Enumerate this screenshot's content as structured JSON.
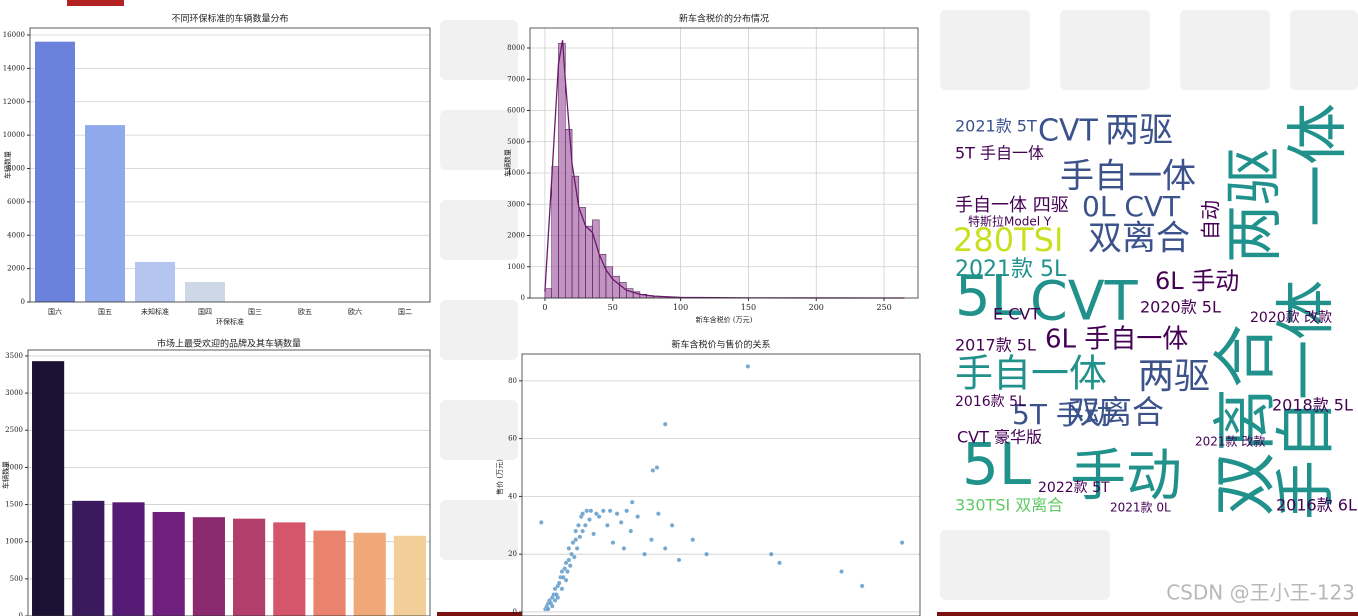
{
  "chart_data": [
    {
      "type": "bar",
      "title": "不同环保标准的车辆数量分布",
      "x_label": "环保标准",
      "y_label": "车辆数量",
      "categories": [
        "国六",
        "国五",
        "未知标准",
        "国四",
        "国三",
        "欧五",
        "欧六",
        "国二"
      ],
      "values": [
        15600,
        10600,
        2400,
        1200,
        25,
        10,
        8,
        3
      ],
      "colors": [
        "#6b82dc",
        "#90a9ec",
        "#b4c6f0",
        "#cdd7e6",
        "#e6d6cc",
        "#efc5b0",
        "#eeae92",
        "#e49375"
      ],
      "ylim": [
        0,
        16420
      ],
      "yticks": [
        0,
        2000,
        4000,
        6000,
        8000,
        10000,
        12000,
        14000,
        16000
      ],
      "grid": true
    },
    {
      "type": "histogram",
      "title": "新车含税价的分布情况",
      "x_label": "新车含税价 (万元)",
      "y_label": "车辆数量",
      "bins": [
        0,
        5,
        10,
        15,
        20,
        25,
        30,
        35,
        40,
        45,
        50,
        55,
        60,
        65,
        70,
        75,
        80,
        85,
        90,
        95,
        100,
        105,
        110,
        115,
        120,
        125,
        130,
        135,
        140,
        145,
        150,
        155,
        160,
        165,
        170,
        175,
        180,
        185,
        190,
        195,
        200,
        205,
        210,
        215,
        220,
        225,
        230,
        235,
        240,
        245,
        250,
        255,
        260,
        265
      ],
      "counts": [
        300,
        4200,
        8150,
        5400,
        3900,
        2900,
        2300,
        2500,
        1400,
        1000,
        700,
        500,
        300,
        200,
        120,
        80,
        60,
        40,
        30,
        20,
        15,
        10,
        10,
        5,
        5,
        5,
        3,
        3,
        2,
        2,
        2,
        1,
        1,
        1,
        1,
        1,
        0,
        0,
        1,
        0,
        0,
        0,
        1,
        0,
        0,
        0,
        0,
        0,
        0,
        1,
        0,
        0,
        1
      ],
      "color": "#a35ba3",
      "kde": {
        "x": [
          0,
          5,
          10,
          13,
          15,
          20,
          25,
          30,
          35,
          40,
          45,
          50,
          60,
          70,
          80,
          100,
          150,
          200,
          265
        ],
        "values": [
          200,
          3800,
          7500,
          8250,
          7000,
          4300,
          2900,
          2300,
          2100,
          1400,
          900,
          600,
          250,
          120,
          60,
          20,
          5,
          2,
          0
        ],
        "color": "#6a1b6a"
      },
      "xlim": [
        -11,
        275
      ],
      "ylim": [
        0,
        8640
      ],
      "xticks": [
        0,
        50,
        100,
        150,
        200,
        250
      ],
      "yticks": [
        0,
        1000,
        2000,
        3000,
        4000,
        5000,
        6000,
        7000,
        8000
      ],
      "grid": true
    },
    {
      "type": "bar",
      "title": "市场上最受欢迎的品牌及其车辆数量",
      "y_label": "车辆数量",
      "categories": [
        null,
        null,
        null,
        null,
        null,
        null,
        null,
        null,
        null,
        null
      ],
      "values": [
        3430,
        1550,
        1530,
        1400,
        1330,
        1310,
        1260,
        1150,
        1120,
        1080
      ],
      "colors": [
        "#1b1233",
        "#3a1a5c",
        "#551a73",
        "#6f1f7d",
        "#8c2a70",
        "#b23e6c",
        "#d5566b",
        "#e9836e",
        "#f0a878",
        "#f2ce98"
      ],
      "ylim": [
        0,
        3580
      ],
      "yticks": [
        0,
        500,
        1000,
        1500,
        2000,
        2500,
        3000,
        3500
      ],
      "grid": true
    },
    {
      "type": "scatter",
      "title": "新车含税价与售价的关系",
      "y_label": "售价 (万元)",
      "x": [
        3,
        4,
        5,
        5,
        6,
        7,
        8,
        8,
        9,
        10,
        10,
        11,
        12,
        12,
        13,
        14,
        15,
        15,
        16,
        17,
        18,
        18,
        19,
        20,
        20,
        21,
        22,
        23,
        24,
        25,
        25,
        26,
        27,
        28,
        29,
        30,
        30,
        32,
        33,
        35,
        36,
        38,
        40,
        42,
        45,
        48,
        50,
        52,
        55,
        58,
        60,
        62,
        65,
        70,
        75,
        80,
        85,
        90,
        95,
        0,
        66,
        84,
        81,
        90,
        150,
        167,
        173,
        218,
        233,
        262,
        110,
        120,
        100
      ],
      "values": [
        1,
        2,
        3,
        1,
        4,
        3,
        5,
        2,
        6,
        4,
        8,
        6,
        9,
        5,
        10,
        12,
        8,
        14,
        12,
        15,
        11,
        17,
        14,
        18,
        22,
        16,
        20,
        24,
        19,
        25,
        28,
        22,
        30,
        26,
        33,
        28,
        34,
        30,
        35,
        32,
        35,
        27,
        34,
        33,
        35,
        30,
        35,
        24,
        34,
        31,
        22,
        35,
        28,
        33,
        20,
        25,
        34,
        22,
        30,
        31,
        38,
        50,
        49,
        65,
        85,
        20,
        17,
        14,
        9,
        24,
        25,
        20,
        18
      ],
      "color": "#3c84be",
      "xlim": [
        -14,
        275
      ],
      "ylim": [
        -1.4,
        89.3
      ],
      "yticks": [
        0,
        20,
        40,
        60,
        80
      ],
      "grid": true
    }
  ],
  "wordcloud": {
    "words": [
      "手自一体",
      "CVT",
      "两驱",
      "两驱",
      "一体",
      "280TSI",
      "双离合",
      "5L",
      "CVT",
      "双离合",
      "手自一体",
      "5L",
      "手动",
      "手自一体",
      "两驱",
      "双离合",
      "0L CVT",
      "2021款 5L",
      "6L 手动",
      "6L 手自一体",
      "手自一体 四驱",
      "特斯拉Model Y",
      "2021款 5T",
      "5T 手自一体",
      "2017款 5L",
      "E CVT",
      "2020款 5L",
      "2018款 5L",
      "2016款 6L",
      "330TSI 双离合",
      "2022款 5T",
      "CVT 豪华版",
      "5T 手动",
      "2020款 改款",
      "自动",
      "2016款 5L",
      "2021款 0L",
      "2021款 改款"
    ]
  },
  "watermark": "CSDN @王小王-123"
}
